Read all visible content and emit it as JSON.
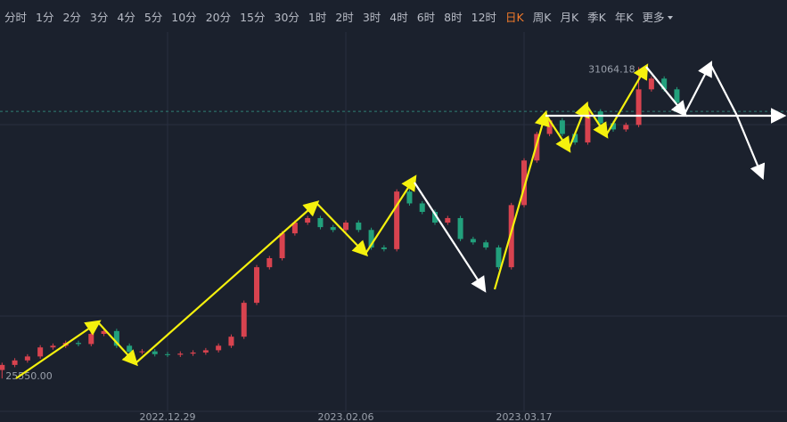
{
  "toolbar": {
    "tabs": [
      "分时",
      "1分",
      "2分",
      "3分",
      "4分",
      "5分",
      "10分",
      "20分",
      "15分",
      "30分",
      "1时",
      "2时",
      "3时",
      "4时",
      "6时",
      "8时",
      "12时",
      "日K",
      "周K",
      "月K",
      "季K",
      "年K",
      "更多"
    ],
    "active": "日K"
  },
  "chart_data": {
    "type": "candlestick",
    "categories": [
      null,
      null,
      null,
      null,
      null,
      null,
      null,
      null,
      null,
      null,
      null,
      null,
      null,
      "2022.12.29",
      null,
      null,
      null,
      null,
      null,
      null,
      null,
      null,
      null,
      null,
      null,
      null,
      null,
      "2023.02.06",
      null,
      null,
      null,
      null,
      null,
      null,
      null,
      null,
      null,
      null,
      null,
      null,
      null,
      "2023.03.17",
      null,
      null,
      null,
      null,
      null,
      null,
      null,
      null,
      null,
      null,
      null,
      null
    ],
    "open": [
      25700,
      25790,
      25870,
      25940,
      26100,
      26130,
      26180,
      26160,
      26340,
      26390,
      26130,
      26020,
      26030,
      25980,
      25970,
      25990,
      26010,
      26050,
      26130,
      26290,
      26890,
      27520,
      27680,
      28120,
      28310,
      28390,
      28230,
      28180,
      28310,
      28180,
      27870,
      27840,
      28860,
      28650,
      28500,
      28310,
      28390,
      28020,
      27960,
      27870,
      27520,
      28620,
      29410,
      29880,
      30120,
      29880,
      29730,
      30280,
      30070,
      29960,
      30040,
      30670,
      30860,
      30670
    ],
    "high": [
      25830,
      25910,
      25980,
      26140,
      26170,
      26220,
      26220,
      26380,
      26430,
      26430,
      26170,
      26070,
      26070,
      26020,
      26030,
      26050,
      26090,
      26170,
      26330,
      26930,
      27560,
      27720,
      28160,
      28350,
      28430,
      28430,
      28270,
      28350,
      28350,
      28220,
      27910,
      28900,
      28900,
      28690,
      28540,
      28430,
      28430,
      28060,
      28000,
      27910,
      28660,
      29450,
      29920,
      30160,
      30160,
      29920,
      30320,
      30320,
      30110,
      30080,
      31064.18,
      30900,
      30900,
      30710
    ],
    "low": [
      25550,
      25750,
      25830,
      25900,
      26060,
      26090,
      26120,
      26120,
      26300,
      26090,
      25980,
      25980,
      25940,
      25930,
      25930,
      25950,
      25970,
      26010,
      26090,
      26250,
      26850,
      27480,
      27640,
      28080,
      28270,
      28190,
      28140,
      28140,
      28140,
      27830,
      27800,
      27800,
      28610,
      28460,
      28270,
      28270,
      27980,
      27920,
      27830,
      27480,
      27480,
      28580,
      29370,
      29840,
      29840,
      29690,
      29690,
      30030,
      29920,
      29920,
      30000,
      30630,
      30630,
      30390
    ],
    "close": [
      25790,
      25870,
      25940,
      26100,
      26130,
      26180,
      26160,
      26340,
      26390,
      26130,
      26020,
      26030,
      25980,
      25970,
      25990,
      26010,
      26050,
      26130,
      26290,
      26890,
      27520,
      27680,
      28120,
      28310,
      28390,
      28230,
      28180,
      28310,
      28180,
      27870,
      27840,
      28860,
      28650,
      28500,
      28310,
      28390,
      28020,
      27960,
      27870,
      27520,
      28620,
      29410,
      29880,
      30120,
      29880,
      29730,
      30280,
      30070,
      29960,
      30040,
      30670,
      30860,
      30670,
      30430
    ],
    "up_color": "#d8434f",
    "down_color": "#22a07c",
    "extreme_labels": [
      {
        "value": 31064.18,
        "label": "31064.18"
      },
      {
        "value": 25550,
        "label": "25550.00"
      }
    ],
    "price_line": 30280,
    "ylim": [
      25000,
      31700
    ]
  }
}
